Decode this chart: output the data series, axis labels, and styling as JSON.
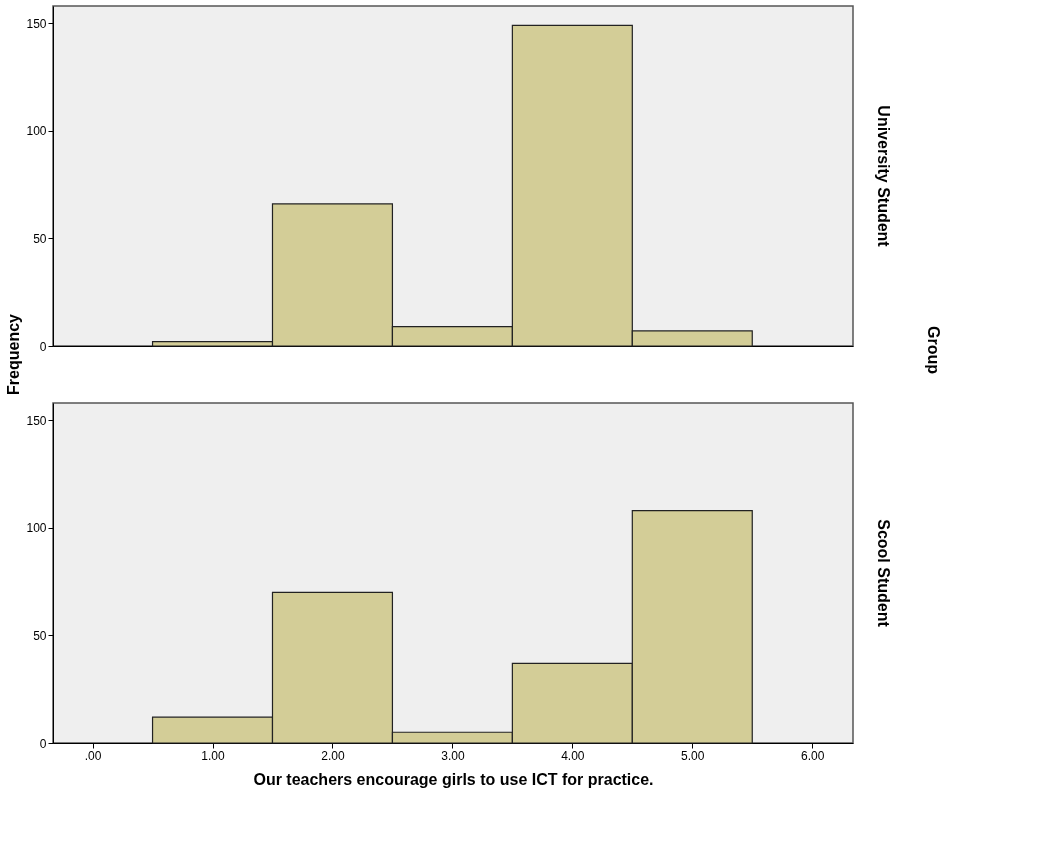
{
  "chart_data": [
    {
      "type": "histogram",
      "bins": [
        0.5,
        1.5,
        2.5,
        3.5,
        4.5,
        5.5
      ],
      "values": [
        2,
        66,
        9,
        149,
        7
      ],
      "color": "#d3cd97",
      "xlim": [
        -0.33,
        6.34
      ],
      "ylim": [
        0,
        158
      ],
      "yticks": [
        0,
        50,
        100,
        150
      ],
      "ylabel": "Frequency",
      "tick_labels": "y",
      "grid": false,
      "annotations": [
        "University Student",
        "Group"
      ]
    },
    {
      "type": "histogram",
      "bins": [
        0.5,
        1.5,
        2.5,
        3.5,
        4.5,
        5.5
      ],
      "values": [
        12,
        70,
        5,
        37,
        108
      ],
      "color": "#d3cd97",
      "xlim": [
        -0.33,
        6.34
      ],
      "ylim": [
        0,
        158
      ],
      "yticks": [
        0,
        50,
        100,
        150
      ],
      "xticks": [
        {
          "value": 0,
          "label": ".00"
        },
        {
          "value": 1,
          "label": "1.00"
        },
        {
          "value": 2,
          "label": "2.00"
        },
        {
          "value": 3,
          "label": "3.00"
        },
        {
          "value": 4,
          "label": "4.00"
        },
        {
          "value": 5,
          "label": "5.00"
        },
        {
          "value": 6,
          "label": "6.00"
        }
      ],
      "xlabel": "Our teachers encourage girls to use ICT for practice.",
      "grid": false,
      "annotations": [
        "Scool Student"
      ]
    }
  ]
}
